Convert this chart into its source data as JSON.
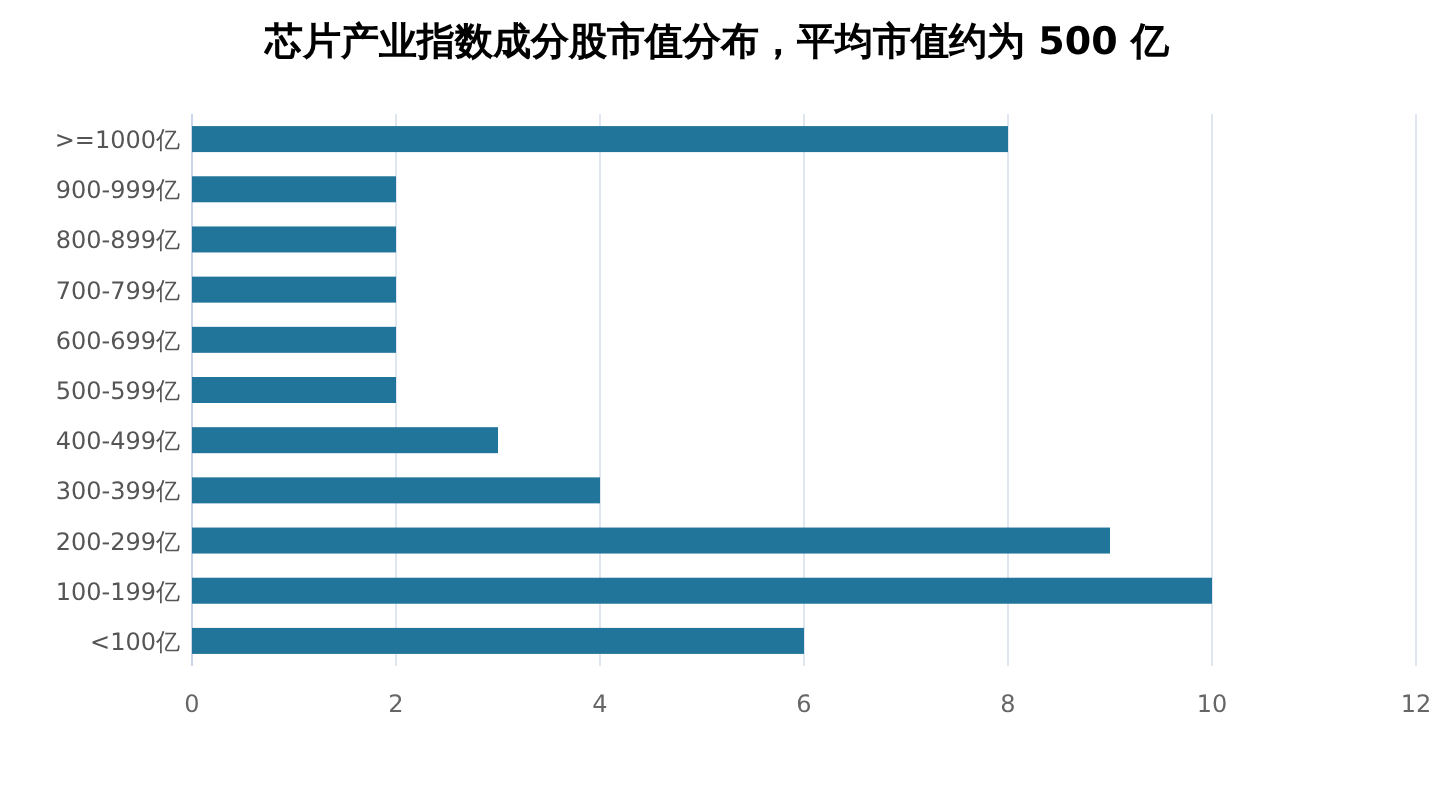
{
  "chart_data": {
    "type": "bar",
    "orientation": "horizontal",
    "title": "芯片产业指数成分股市值分布，平均市值约为 500 亿",
    "categories": [
      ">=1000亿",
      "900-999亿",
      "800-899亿",
      "700-799亿",
      "600-699亿",
      "500-599亿",
      "400-499亿",
      "300-399亿",
      "200-299亿",
      "100-199亿",
      "<100亿"
    ],
    "values": [
      8,
      2,
      2,
      2,
      2,
      2,
      3,
      4,
      9,
      10,
      6
    ],
    "color": "#21759b",
    "xlim": [
      0,
      12
    ],
    "xticks": [
      0,
      2,
      4,
      6,
      8,
      10,
      12
    ],
    "grid": "x"
  }
}
